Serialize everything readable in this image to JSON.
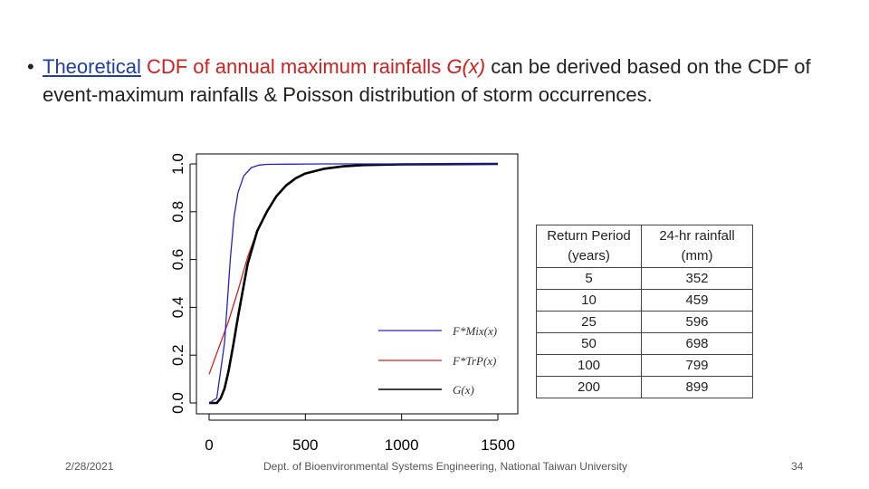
{
  "bullet": {
    "marker": "•",
    "link_text": "Theoretical",
    "red_text": "CDF of annual maximum rainfalls",
    "func_italic": "G(x)",
    "rest_line": "can be derived based on the CDF of event-maximum rainfalls & Poisson distribution of storm occurrences."
  },
  "legend": {
    "items": [
      {
        "label": "F*Mix(x)",
        "color": "#2323c8"
      },
      {
        "label": "F*TrP(x)",
        "color": "#d02020"
      },
      {
        "label": "G(x)",
        "color": "#000000"
      }
    ]
  },
  "table": {
    "header1": "Return Period",
    "header1b": "(years)",
    "header2": "24-hr rainfall",
    "header2b": "(mm)",
    "rows": [
      [
        "5",
        "352"
      ],
      [
        "10",
        "459"
      ],
      [
        "25",
        "596"
      ],
      [
        "50",
        "698"
      ],
      [
        "100",
        "799"
      ],
      [
        "200",
        "899"
      ]
    ]
  },
  "footer": {
    "date": "2/28/2021",
    "center": "Dept. of Bioenvironmental Systems Engineering, National Taiwan University",
    "page": "34"
  },
  "chart_data": {
    "type": "line",
    "xlim": [
      0,
      1500
    ],
    "ylim": [
      0,
      1
    ],
    "x_ticks": [
      0,
      500,
      1000,
      1500
    ],
    "y_ticks": [
      0.0,
      0.2,
      0.4,
      0.6,
      0.8,
      1.0
    ],
    "y_tick_labels": [
      "0.0",
      "0.2",
      "0.4",
      "0.6",
      "0.8",
      "1.0"
    ],
    "legend_position": "bottom-right",
    "series": [
      {
        "name": "F*Mix(x)",
        "color": "#2323c8",
        "x": [
          0,
          40,
          80,
          110,
          130,
          150,
          180,
          220,
          260,
          300,
          400,
          600,
          1500
        ],
        "y": [
          0.0,
          0.02,
          0.25,
          0.6,
          0.78,
          0.88,
          0.95,
          0.985,
          0.995,
          0.998,
          0.999,
          1.0,
          1.0
        ]
      },
      {
        "name": "F*TrP(x)",
        "color": "#d02020",
        "x": [
          0,
          50,
          100,
          150,
          200,
          250,
          300,
          350,
          400,
          450,
          500,
          600,
          700,
          800,
          1000,
          1200,
          1500
        ],
        "y": [
          0.12,
          0.23,
          0.34,
          0.47,
          0.61,
          0.72,
          0.8,
          0.865,
          0.91,
          0.94,
          0.96,
          0.98,
          0.99,
          0.995,
          0.998,
          0.999,
          1.0
        ]
      },
      {
        "name": "G(x)",
        "color": "#000000",
        "x": [
          0,
          40,
          60,
          80,
          100,
          125,
          150,
          175,
          200,
          250,
          300,
          350,
          400,
          450,
          500,
          600,
          700,
          800,
          1000,
          1200,
          1500
        ],
        "y": [
          0.0,
          0.0,
          0.02,
          0.06,
          0.13,
          0.24,
          0.36,
          0.47,
          0.58,
          0.72,
          0.8,
          0.865,
          0.91,
          0.94,
          0.96,
          0.98,
          0.99,
          0.995,
          0.998,
          0.999,
          1.0
        ]
      }
    ]
  }
}
